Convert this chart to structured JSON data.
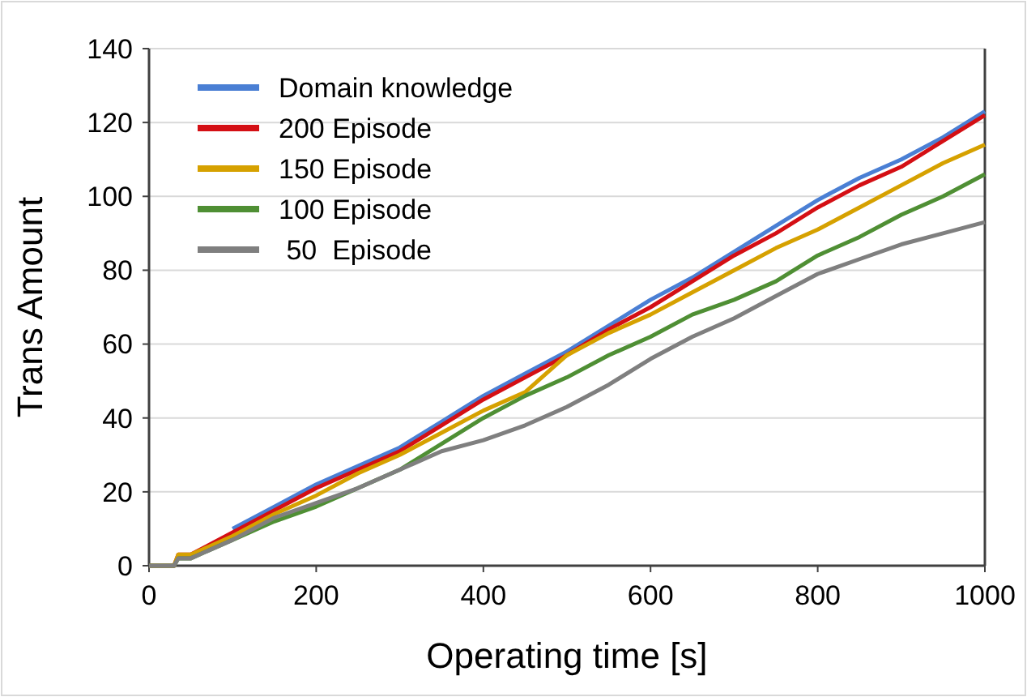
{
  "chart_data": {
    "type": "line",
    "xlabel": "Operating time [s]",
    "ylabel": "Trans Amount",
    "x": [
      0,
      30,
      35,
      50,
      100,
      150,
      200,
      250,
      300,
      350,
      400,
      450,
      500,
      550,
      600,
      650,
      700,
      750,
      800,
      850,
      900,
      950,
      1000
    ],
    "series": [
      {
        "name": "Domain knowledge",
        "color": "#4a7fd4",
        "values": [
          null,
          null,
          null,
          null,
          10,
          16,
          22,
          27,
          32,
          39,
          46,
          52,
          58,
          65,
          72,
          78,
          85,
          92,
          99,
          105,
          110,
          116,
          123
        ]
      },
      {
        "name": "200 Episode",
        "color": "#d40f14",
        "values": [
          0,
          0,
          3,
          3,
          9,
          15,
          21,
          26,
          31,
          38,
          45,
          51,
          57,
          64,
          70,
          77,
          84,
          90,
          97,
          103,
          108,
          115,
          122
        ]
      },
      {
        "name": "150 Episode",
        "color": "#d6a100",
        "values": [
          0,
          0,
          3,
          3,
          8,
          14,
          19,
          25,
          30,
          36,
          42,
          47,
          57,
          63,
          68,
          74,
          80,
          86,
          91,
          97,
          103,
          109,
          114
        ]
      },
      {
        "name": "100 Episode",
        "color": "#4f8f34",
        "values": [
          0,
          0,
          2,
          2,
          7,
          12,
          16,
          21,
          26,
          33,
          40,
          46,
          51,
          57,
          62,
          68,
          72,
          77,
          84,
          89,
          95,
          100,
          106
        ]
      },
      {
        "name": " 50  Episode",
        "color": "#7f7f7f",
        "values": [
          0,
          0,
          2,
          2,
          7,
          13,
          17,
          21,
          26,
          31,
          34,
          38,
          43,
          49,
          56,
          62,
          67,
          73,
          79,
          83,
          87,
          90,
          93
        ]
      }
    ],
    "xlim": [
      0,
      1000
    ],
    "xticks": [
      0,
      200,
      400,
      600,
      800,
      1000
    ],
    "ylim": [
      0,
      140
    ],
    "yticks": [
      0,
      20,
      40,
      60,
      80,
      100,
      120,
      140
    ],
    "grid": "y",
    "legend": "top left",
    "line_style": "solid",
    "marker": "none"
  }
}
